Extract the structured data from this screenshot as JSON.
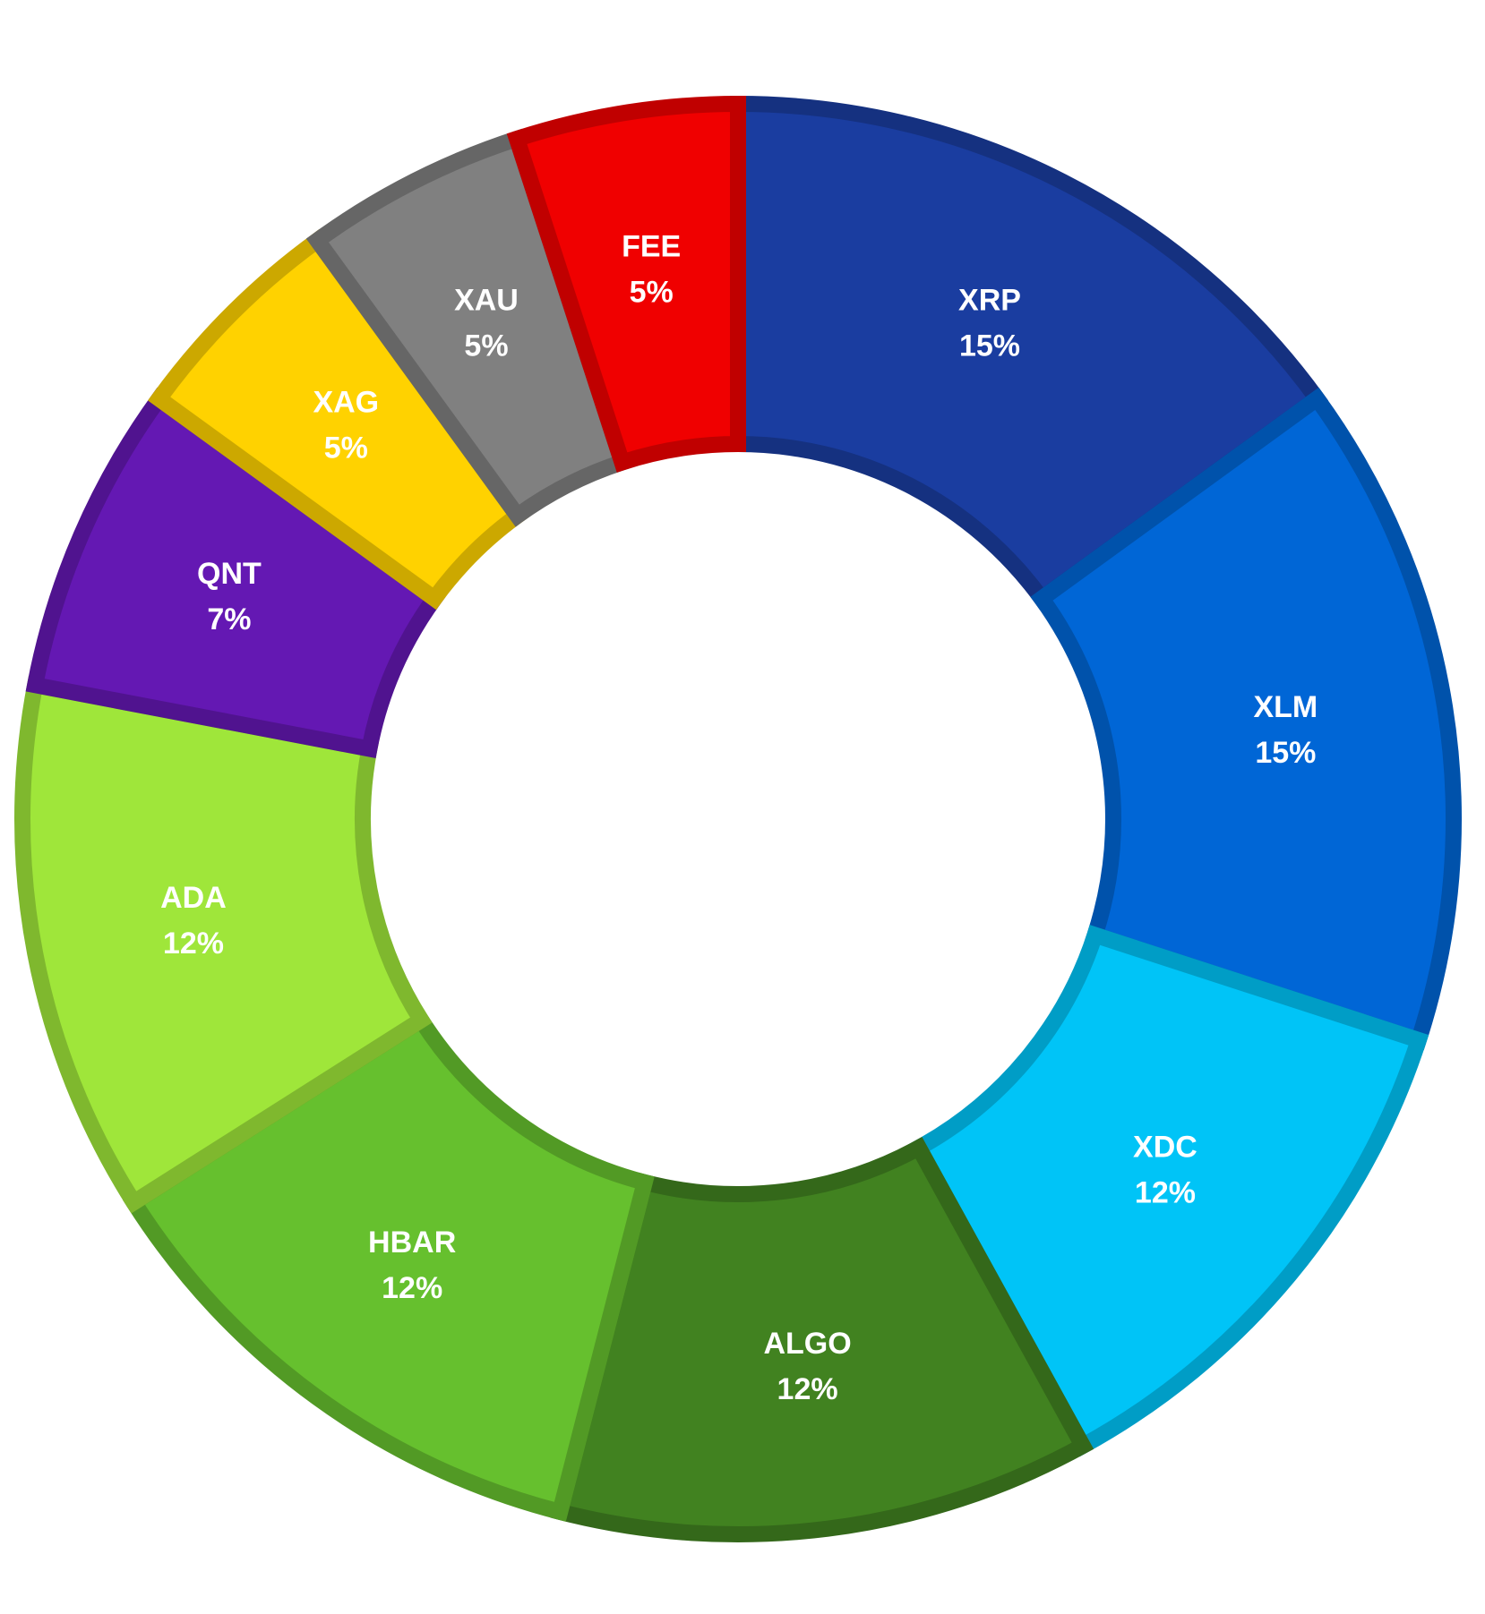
{
  "chart_data": {
    "type": "pie",
    "categories": [
      "XRP",
      "XLM",
      "XDC",
      "ALGO",
      "HBAR",
      "ADA",
      "QNT",
      "XAG",
      "XAU",
      "FEE"
    ],
    "values": [
      15,
      15,
      12,
      12,
      12,
      12,
      7,
      5,
      5,
      5
    ],
    "value_labels": [
      "15%",
      "15%",
      "12%",
      "12%",
      "12%",
      "12%",
      "7%",
      "5%",
      "5%",
      "5%"
    ],
    "colors": [
      "#1a3da0",
      "#0066d6",
      "#00c4f7",
      "#418220",
      "#66c02e",
      "#9fe63a",
      "#6418b3",
      "#ffd200",
      "#808080",
      "#f00000"
    ]
  }
}
